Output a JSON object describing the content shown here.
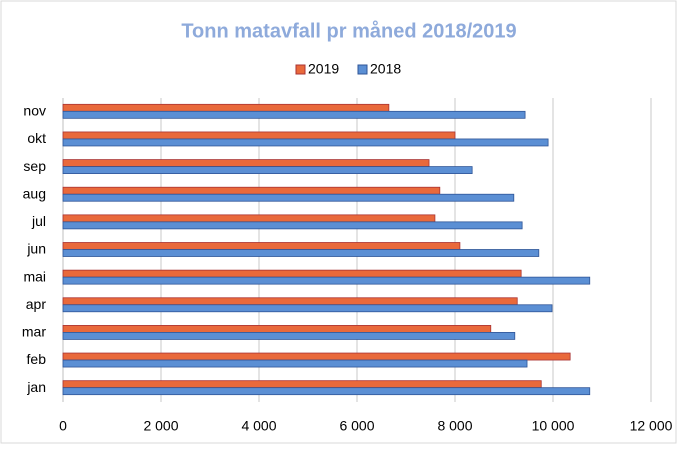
{
  "chart_data": {
    "type": "hbar",
    "title": "Tonn matavfall pr måned 2018/2019",
    "categories": [
      "jan",
      "feb",
      "mar",
      "apr",
      "mai",
      "jun",
      "jul",
      "aug",
      "sep",
      "okt",
      "nov"
    ],
    "series": [
      {
        "name": "2019",
        "color": "#e9693b",
        "values": [
          9760,
          10350,
          8730,
          9270,
          9350,
          8100,
          7590,
          7690,
          7470,
          8000,
          6650
        ]
      },
      {
        "name": "2018",
        "color": "#5b8fd4",
        "values": [
          10750,
          9470,
          9220,
          9980,
          10750,
          9710,
          9370,
          9200,
          8350,
          9900,
          9430
        ]
      }
    ],
    "xlim": [
      0,
      12000
    ],
    "xticks": [
      0,
      {
        "value": 2000,
        "label": "2 000"
      },
      {
        "value": 4000,
        "label": "4 000"
      },
      {
        "value": 6000,
        "label": "6 000"
      },
      {
        "value": 8000,
        "label": "8 000"
      },
      {
        "value": 10000,
        "label": "10 000"
      },
      {
        "value": 12000,
        "label": "12 000"
      }
    ],
    "grid": true,
    "legend": "top"
  }
}
